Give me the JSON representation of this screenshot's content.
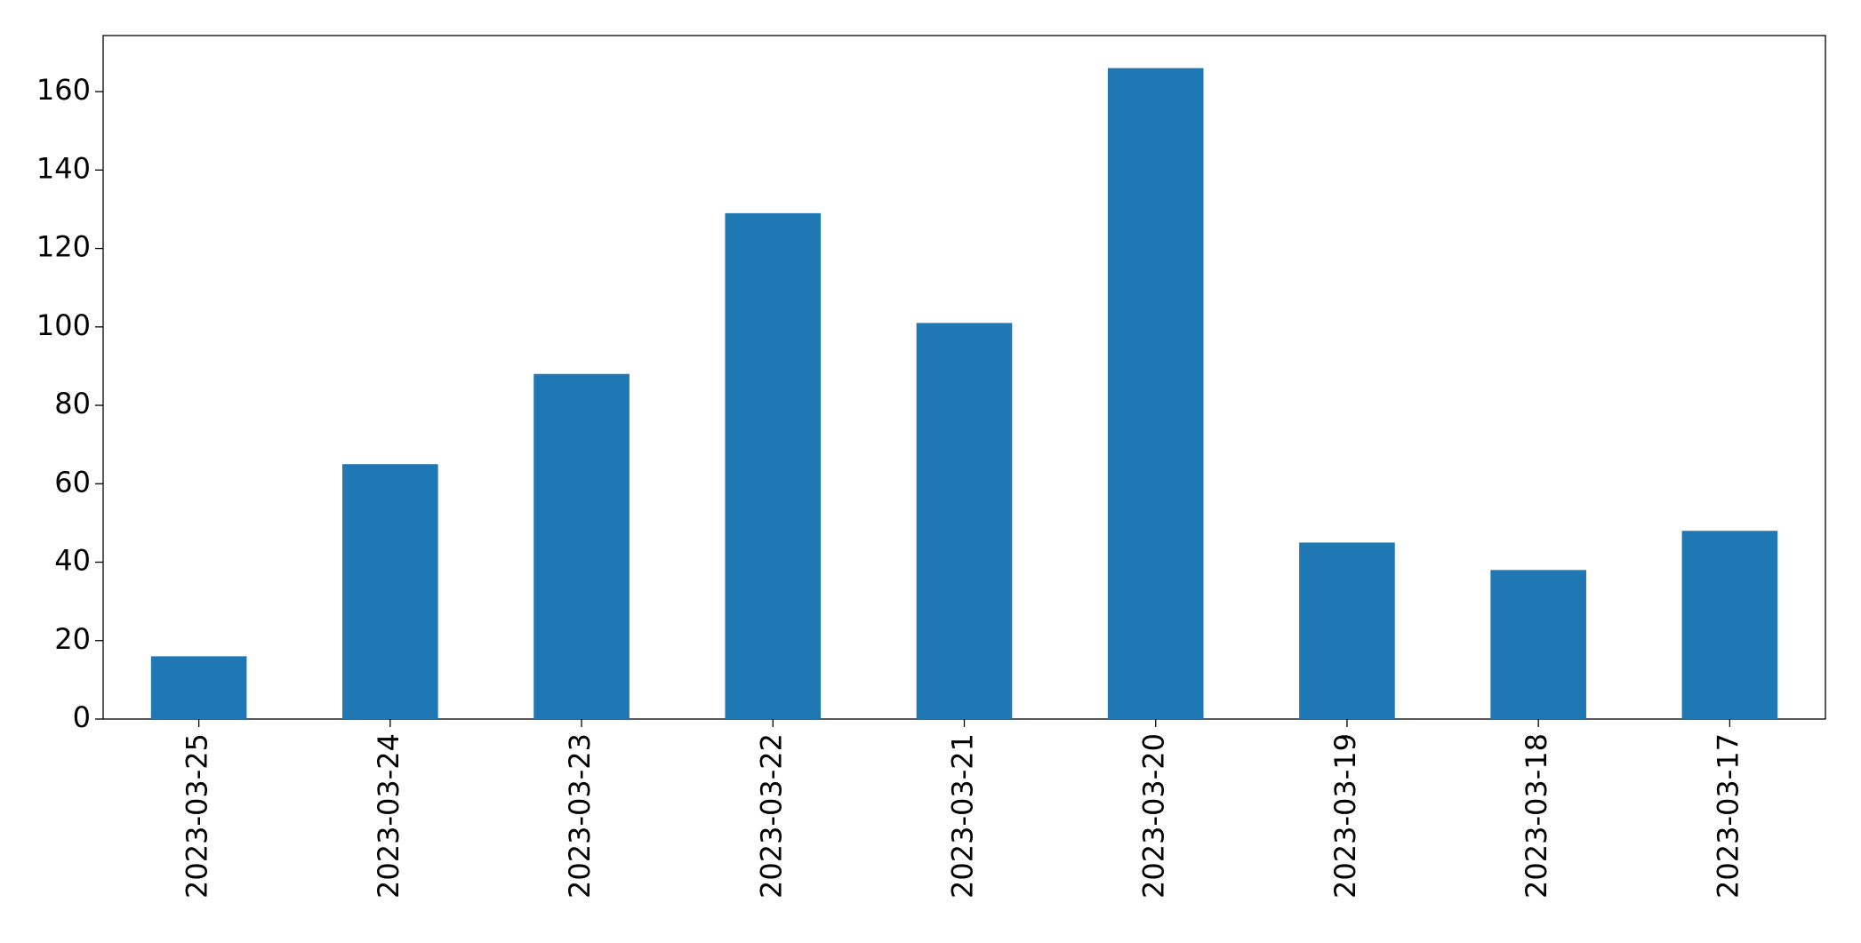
{
  "chart_data": {
    "type": "bar",
    "categories": [
      "2023-03-25",
      "2023-03-24",
      "2023-03-23",
      "2023-03-22",
      "2023-03-21",
      "2023-03-20",
      "2023-03-19",
      "2023-03-18",
      "2023-03-17"
    ],
    "values": [
      16,
      65,
      88,
      129,
      101,
      166,
      45,
      38,
      48
    ],
    "color": "#1f77b4",
    "ylim": [
      0,
      174.3
    ],
    "yticks": [
      0,
      20,
      40,
      60,
      80,
      100,
      120,
      140,
      160
    ],
    "grid": false
  }
}
